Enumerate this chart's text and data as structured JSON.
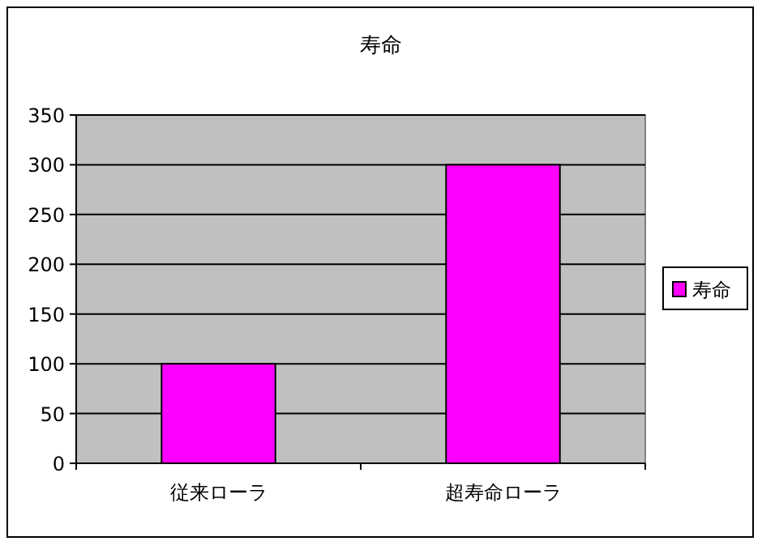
{
  "chart_data": {
    "type": "bar",
    "title": "寿命",
    "categories": [
      "従来ローラ",
      "超寿命ローラ"
    ],
    "series": [
      {
        "name": "寿命",
        "color": "#ff00ff",
        "values": [
          100,
          300
        ]
      }
    ],
    "ylim": [
      0,
      350
    ],
    "yticks": [
      0,
      50,
      100,
      150,
      200,
      250,
      300,
      350
    ],
    "grid": "y",
    "legend": "right"
  }
}
